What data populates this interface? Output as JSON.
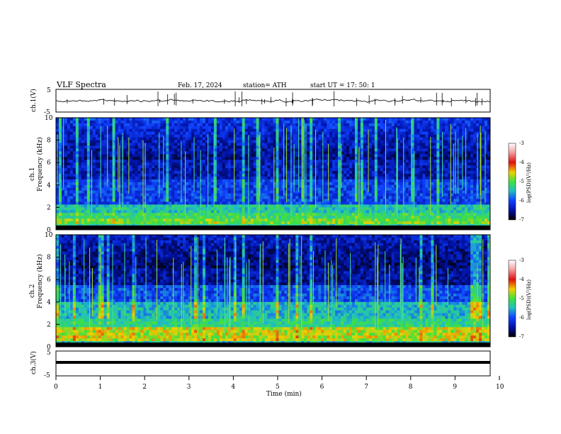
{
  "header": {
    "title": "VLF  Spectra",
    "date": "Feb. 17, 2024",
    "station": "station= ATH",
    "start": "start  UT  =    17: 50: 1"
  },
  "chart_data": [
    {
      "type": "line",
      "ylabel": "ch.1(V)",
      "yticks": [
        "5",
        "-5"
      ],
      "ylim": [
        -5,
        5
      ],
      "xlim": [
        0,
        10
      ],
      "description_level": 0.4
    },
    {
      "type": "heatmap",
      "ylabel_channel": "ch.1",
      "ylabel": "Frequency  (kHz)",
      "yticks": [
        "10",
        "8",
        "6",
        "4",
        "2",
        "0"
      ],
      "ylim": [
        0,
        10
      ],
      "xlim": [
        0,
        10
      ],
      "colorbar": {
        "label": "log(PSD)(V²/Hz)",
        "ticks": [
          "-3",
          "-4",
          "-5",
          "-6",
          "-7"
        ],
        "range": [
          -7,
          -3
        ]
      }
    },
    {
      "type": "heatmap",
      "ylabel_channel": "ch.2",
      "ylabel": "Frequency  (kHz)",
      "yticks": [
        "10",
        "8",
        "6",
        "4",
        "2",
        "0"
      ],
      "ylim": [
        0,
        10
      ],
      "xlim": [
        0,
        10
      ],
      "colorbar": {
        "label": "log(PSD)(V²/Hz)",
        "ticks": [
          "-3",
          "-4",
          "-5",
          "-6",
          "-7"
        ],
        "range": [
          -7,
          -3
        ]
      }
    },
    {
      "type": "line",
      "ylabel": "ch.3(V)",
      "yticks": [
        "5",
        "-5"
      ],
      "ylim": [
        -5,
        5
      ],
      "xlim": [
        0,
        10
      ],
      "xlabel": "Time  (min)",
      "xticks": [
        "0",
        "1",
        "2",
        "3",
        "4",
        "5",
        "6",
        "7",
        "8",
        "9",
        "10"
      ]
    }
  ]
}
